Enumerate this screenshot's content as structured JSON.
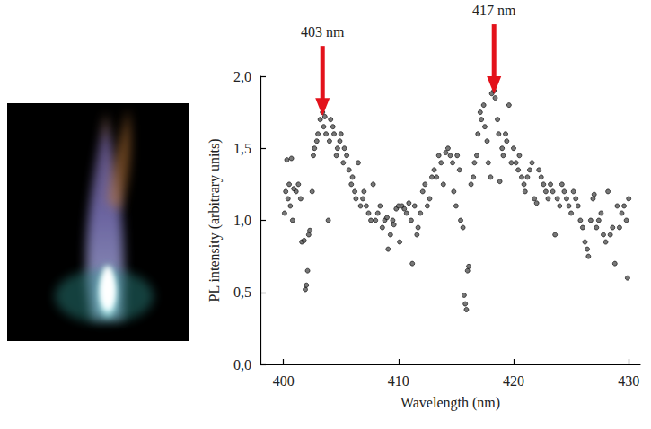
{
  "chart_data": {
    "type": "scatter",
    "x_label": "Wavelength (nm)",
    "y_label": "PL intensity (arbitrary units)",
    "xlim": [
      398,
      431
    ],
    "xticks": [
      400,
      410,
      420,
      430
    ],
    "ylim": [
      0,
      2
    ],
    "yticks": [
      {
        "value": 0,
        "label": "0,0"
      },
      {
        "value": 0.5,
        "label": "0,5"
      },
      {
        "value": 1,
        "label": "1,0"
      },
      {
        "value": 1.5,
        "label": "1,5"
      },
      {
        "value": 2,
        "label": "2,0"
      }
    ],
    "grid": false,
    "color": "#555555",
    "marker": "circle",
    "annotations": [
      {
        "text": "403 nm",
        "x": 403.4,
        "y": 1.7
      },
      {
        "text": "417 nm",
        "x": 418.3,
        "y": 1.85
      }
    ],
    "x": [
      400.1,
      400.2,
      400.3,
      400.4,
      400.5,
      400.6,
      400.7,
      400.8,
      400.9,
      401.1,
      401.3,
      401.5,
      401.6,
      401.8,
      401.9,
      402.0,
      402.1,
      402.2,
      402.3,
      402.5,
      402.6,
      402.7,
      402.9,
      403.0,
      403.2,
      403.4,
      403.5,
      403.6,
      403.7,
      403.9,
      404.0,
      404.1,
      404.3,
      404.4,
      404.6,
      404.7,
      404.9,
      405.0,
      405.2,
      405.3,
      405.5,
      405.7,
      405.9,
      406.0,
      406.2,
      406.3,
      406.5,
      406.7,
      406.9,
      407.0,
      407.2,
      407.4,
      407.6,
      407.8,
      408.0,
      408.2,
      408.4,
      408.6,
      408.8,
      409.0,
      409.1,
      409.3,
      409.5,
      409.6,
      409.8,
      410.0,
      410.1,
      410.3,
      410.5,
      410.7,
      410.9,
      411.1,
      411.2,
      411.4,
      411.6,
      411.7,
      411.9,
      412.1,
      412.3,
      412.5,
      412.7,
      412.9,
      413.1,
      413.3,
      413.5,
      413.7,
      413.9,
      414.1,
      414.3,
      414.5,
      414.7,
      414.8,
      415.0,
      415.1,
      415.3,
      415.4,
      415.6,
      415.7,
      415.8,
      415.9,
      416.0,
      416.1,
      416.3,
      416.5,
      416.6,
      416.8,
      416.9,
      417.1,
      417.2,
      417.4,
      417.5,
      417.7,
      417.8,
      418.0,
      418.1,
      418.3,
      418.4,
      418.6,
      418.7,
      418.8,
      419.0,
      419.1,
      419.3,
      419.4,
      419.6,
      419.8,
      420.0,
      420.2,
      420.4,
      420.5,
      420.7,
      420.9,
      421.0,
      421.2,
      421.4,
      421.6,
      421.8,
      422.0,
      422.2,
      422.4,
      422.6,
      422.8,
      423.0,
      423.2,
      423.4,
      423.6,
      423.8,
      424.0,
      424.2,
      424.4,
      424.6,
      424.8,
      425.0,
      425.2,
      425.4,
      425.6,
      425.8,
      426.0,
      426.2,
      426.4,
      426.5,
      426.7,
      426.9,
      427.0,
      427.2,
      427.4,
      427.6,
      427.8,
      428.0,
      428.2,
      428.4,
      428.6,
      428.8,
      429.0,
      429.2,
      429.4,
      429.6,
      429.8,
      429.9,
      430.0
    ],
    "values": [
      1.05,
      1.2,
      1.42,
      1.15,
      1.25,
      1.1,
      1.43,
      1.0,
      1.22,
      1.2,
      1.25,
      1.15,
      0.85,
      0.86,
      0.52,
      0.55,
      0.65,
      0.9,
      0.93,
      1.2,
      1.45,
      1.5,
      1.55,
      1.6,
      1.7,
      1.75,
      1.65,
      1.72,
      1.6,
      1.0,
      1.55,
      1.7,
      1.65,
      1.6,
      1.45,
      1.5,
      1.55,
      1.6,
      1.4,
      1.5,
      1.45,
      1.35,
      1.25,
      1.3,
      1.2,
      1.15,
      1.4,
      1.1,
      1.15,
      1.2,
      1.1,
      1.05,
      1.0,
      1.25,
      1.0,
      1.05,
      1.1,
      0.95,
      1.0,
      1.02,
      0.8,
      0.9,
      1.0,
      0.97,
      1.08,
      1.1,
      0.85,
      1.1,
      1.08,
      1.05,
      1.12,
      1.0,
      0.7,
      1.1,
      0.9,
      0.95,
      1.05,
      1.2,
      1.25,
      1.1,
      1.15,
      1.3,
      1.35,
      1.3,
      1.45,
      1.4,
      1.25,
      1.47,
      1.5,
      1.45,
      1.4,
      1.2,
      1.1,
      1.45,
      1.35,
      1.0,
      0.95,
      0.48,
      0.42,
      0.38,
      0.65,
      0.68,
      1.25,
      1.3,
      1.4,
      1.45,
      1.6,
      1.75,
      1.7,
      1.8,
      1.65,
      1.55,
      1.4,
      1.3,
      1.88,
      1.9,
      1.85,
      1.7,
      1.6,
      1.27,
      1.5,
      1.45,
      1.6,
      1.55,
      1.8,
      1.4,
      1.5,
      1.4,
      1.35,
      1.45,
      1.3,
      1.25,
      1.2,
      1.3,
      1.35,
      1.4,
      1.15,
      1.12,
      1.35,
      1.3,
      1.25,
      1.2,
      1.15,
      1.25,
      1.2,
      0.9,
      1.15,
      1.1,
      1.25,
      1.2,
      1.15,
      1.1,
      1.05,
      1.2,
      1.15,
      1.1,
      1.0,
      0.95,
      0.85,
      0.8,
      0.75,
      1.0,
      1.15,
      1.18,
      0.95,
      1.0,
      1.05,
      0.9,
      0.85,
      1.2,
      0.9,
      0.95,
      0.7,
      1.1,
      0.95,
      1.05,
      1.1,
      1.0,
      0.6,
      1.15
    ]
  }
}
